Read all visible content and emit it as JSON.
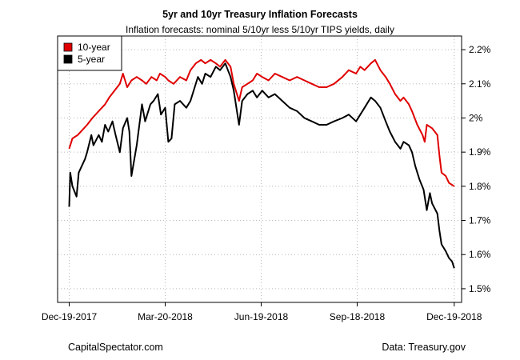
{
  "chart_data": {
    "type": "line",
    "title": "5yr and 10yr Treasury Inflation Forecasts",
    "subtitle": "Inflation forecasts: nominal 5/10yr less 5/10yr TIPS yields, daily",
    "y_axis_position": "right",
    "ylim": [
      1.46,
      2.24
    ],
    "y_ticks": [
      1.5,
      1.6,
      1.7,
      1.8,
      1.9,
      2.0,
      2.1,
      2.2
    ],
    "y_tick_labels": [
      "1.5%",
      "1.6%",
      "1.7%",
      "1.8%",
      "1.9%",
      "2%",
      "2.1%",
      "2.2%"
    ],
    "xlim": [
      "2017-12-08",
      "2018-12-26"
    ],
    "x_ticks": [
      "2017-12-19",
      "2018-03-20",
      "2018-06-19",
      "2018-09-18",
      "2018-12-19"
    ],
    "x_tick_labels": [
      "Dec-19-2017",
      "Mar-20-2018",
      "Jun-19-2018",
      "Sep-18-2018",
      "Dec-19-2018"
    ],
    "grid": true,
    "legend": "top-left",
    "series": [
      {
        "name": "10-year",
        "color": "#e00000",
        "points": [
          [
            "2017-12-19",
            1.91
          ],
          [
            "2017-12-22",
            1.94
          ],
          [
            "2017-12-27",
            1.95
          ],
          [
            "2018-01-02",
            1.97
          ],
          [
            "2018-01-05",
            1.98
          ],
          [
            "2018-01-10",
            2.0
          ],
          [
            "2018-01-16",
            2.02
          ],
          [
            "2018-01-22",
            2.04
          ],
          [
            "2018-01-26",
            2.06
          ],
          [
            "2018-01-31",
            2.08
          ],
          [
            "2018-02-05",
            2.1
          ],
          [
            "2018-02-08",
            2.13
          ],
          [
            "2018-02-12",
            2.09
          ],
          [
            "2018-02-16",
            2.11
          ],
          [
            "2018-02-21",
            2.12
          ],
          [
            "2018-02-26",
            2.11
          ],
          [
            "2018-03-02",
            2.1
          ],
          [
            "2018-03-07",
            2.12
          ],
          [
            "2018-03-12",
            2.11
          ],
          [
            "2018-03-15",
            2.13
          ],
          [
            "2018-03-20",
            2.12
          ],
          [
            "2018-03-23",
            2.11
          ],
          [
            "2018-03-28",
            2.1
          ],
          [
            "2018-04-03",
            2.12
          ],
          [
            "2018-04-09",
            2.11
          ],
          [
            "2018-04-13",
            2.14
          ],
          [
            "2018-04-18",
            2.16
          ],
          [
            "2018-04-23",
            2.17
          ],
          [
            "2018-04-27",
            2.16
          ],
          [
            "2018-05-02",
            2.17
          ],
          [
            "2018-05-07",
            2.16
          ],
          [
            "2018-05-11",
            2.15
          ],
          [
            "2018-05-16",
            2.17
          ],
          [
            "2018-05-21",
            2.15
          ],
          [
            "2018-05-24",
            2.1
          ],
          [
            "2018-05-29",
            2.05
          ],
          [
            "2018-06-01",
            2.09
          ],
          [
            "2018-06-06",
            2.1
          ],
          [
            "2018-06-11",
            2.11
          ],
          [
            "2018-06-15",
            2.13
          ],
          [
            "2018-06-20",
            2.12
          ],
          [
            "2018-06-26",
            2.11
          ],
          [
            "2018-07-02",
            2.13
          ],
          [
            "2018-07-09",
            2.12
          ],
          [
            "2018-07-16",
            2.11
          ],
          [
            "2018-07-23",
            2.12
          ],
          [
            "2018-07-30",
            2.11
          ],
          [
            "2018-08-06",
            2.1
          ],
          [
            "2018-08-13",
            2.09
          ],
          [
            "2018-08-20",
            2.09
          ],
          [
            "2018-08-27",
            2.1
          ],
          [
            "2018-09-04",
            2.12
          ],
          [
            "2018-09-10",
            2.14
          ],
          [
            "2018-09-17",
            2.13
          ],
          [
            "2018-09-21",
            2.15
          ],
          [
            "2018-09-25",
            2.14
          ],
          [
            "2018-10-01",
            2.16
          ],
          [
            "2018-10-05",
            2.17
          ],
          [
            "2018-10-10",
            2.14
          ],
          [
            "2018-10-15",
            2.12
          ],
          [
            "2018-10-19",
            2.1
          ],
          [
            "2018-10-24",
            2.07
          ],
          [
            "2018-10-29",
            2.05
          ],
          [
            "2018-11-01",
            2.06
          ],
          [
            "2018-11-06",
            2.04
          ],
          [
            "2018-11-09",
            2.02
          ],
          [
            "2018-11-14",
            1.98
          ],
          [
            "2018-11-19",
            1.95
          ],
          [
            "2018-11-21",
            1.93
          ],
          [
            "2018-11-23",
            1.98
          ],
          [
            "2018-11-28",
            1.97
          ],
          [
            "2018-12-03",
            1.95
          ],
          [
            "2018-12-05",
            1.89
          ],
          [
            "2018-12-07",
            1.84
          ],
          [
            "2018-12-11",
            1.83
          ],
          [
            "2018-12-14",
            1.81
          ],
          [
            "2018-12-19",
            1.8
          ]
        ]
      },
      {
        "name": "5-year",
        "color": "#000000",
        "points": [
          [
            "2017-12-19",
            1.74
          ],
          [
            "2017-12-20",
            1.84
          ],
          [
            "2017-12-22",
            1.8
          ],
          [
            "2017-12-26",
            1.77
          ],
          [
            "2017-12-28",
            1.84
          ],
          [
            "2018-01-03",
            1.88
          ],
          [
            "2018-01-05",
            1.9
          ],
          [
            "2018-01-09",
            1.95
          ],
          [
            "2018-01-11",
            1.92
          ],
          [
            "2018-01-16",
            1.95
          ],
          [
            "2018-01-19",
            1.93
          ],
          [
            "2018-01-22",
            1.98
          ],
          [
            "2018-01-25",
            1.96
          ],
          [
            "2018-01-29",
            1.99
          ],
          [
            "2018-02-01",
            1.95
          ],
          [
            "2018-02-05",
            1.9
          ],
          [
            "2018-02-08",
            1.97
          ],
          [
            "2018-02-12",
            2.0
          ],
          [
            "2018-02-14",
            1.96
          ],
          [
            "2018-02-16",
            1.83
          ],
          [
            "2018-02-21",
            1.92
          ],
          [
            "2018-02-26",
            2.04
          ],
          [
            "2018-03-01",
            1.99
          ],
          [
            "2018-03-06",
            2.04
          ],
          [
            "2018-03-09",
            2.05
          ],
          [
            "2018-03-13",
            2.07
          ],
          [
            "2018-03-16",
            2.01
          ],
          [
            "2018-03-20",
            2.03
          ],
          [
            "2018-03-23",
            1.93
          ],
          [
            "2018-03-26",
            1.94
          ],
          [
            "2018-03-29",
            2.04
          ],
          [
            "2018-04-03",
            2.05
          ],
          [
            "2018-04-09",
            2.03
          ],
          [
            "2018-04-13",
            2.05
          ],
          [
            "2018-04-17",
            2.09
          ],
          [
            "2018-04-20",
            2.12
          ],
          [
            "2018-04-24",
            2.1
          ],
          [
            "2018-04-27",
            2.13
          ],
          [
            "2018-05-02",
            2.12
          ],
          [
            "2018-05-07",
            2.15
          ],
          [
            "2018-05-11",
            2.14
          ],
          [
            "2018-05-16",
            2.16
          ],
          [
            "2018-05-21",
            2.12
          ],
          [
            "2018-05-24",
            2.08
          ],
          [
            "2018-05-29",
            1.98
          ],
          [
            "2018-06-01",
            2.05
          ],
          [
            "2018-06-06",
            2.07
          ],
          [
            "2018-06-11",
            2.08
          ],
          [
            "2018-06-15",
            2.06
          ],
          [
            "2018-06-20",
            2.08
          ],
          [
            "2018-06-26",
            2.06
          ],
          [
            "2018-07-02",
            2.07
          ],
          [
            "2018-07-09",
            2.05
          ],
          [
            "2018-07-16",
            2.03
          ],
          [
            "2018-07-23",
            2.02
          ],
          [
            "2018-07-30",
            2.0
          ],
          [
            "2018-08-06",
            1.99
          ],
          [
            "2018-08-13",
            1.98
          ],
          [
            "2018-08-20",
            1.98
          ],
          [
            "2018-08-27",
            1.99
          ],
          [
            "2018-09-04",
            2.0
          ],
          [
            "2018-09-10",
            2.01
          ],
          [
            "2018-09-17",
            1.99
          ],
          [
            "2018-09-21",
            2.01
          ],
          [
            "2018-09-25",
            2.03
          ],
          [
            "2018-10-01",
            2.06
          ],
          [
            "2018-10-05",
            2.05
          ],
          [
            "2018-10-10",
            2.03
          ],
          [
            "2018-10-15",
            1.99
          ],
          [
            "2018-10-19",
            1.96
          ],
          [
            "2018-10-24",
            1.93
          ],
          [
            "2018-10-29",
            1.91
          ],
          [
            "2018-11-01",
            1.93
          ],
          [
            "2018-11-06",
            1.92
          ],
          [
            "2018-11-09",
            1.9
          ],
          [
            "2018-11-12",
            1.86
          ],
          [
            "2018-11-16",
            1.82
          ],
          [
            "2018-11-20",
            1.79
          ],
          [
            "2018-11-23",
            1.73
          ],
          [
            "2018-11-26",
            1.78
          ],
          [
            "2018-11-28",
            1.75
          ],
          [
            "2018-12-03",
            1.72
          ],
          [
            "2018-12-05",
            1.67
          ],
          [
            "2018-12-07",
            1.63
          ],
          [
            "2018-12-11",
            1.61
          ],
          [
            "2018-12-14",
            1.59
          ],
          [
            "2018-12-17",
            1.58
          ],
          [
            "2018-12-19",
            1.56
          ]
        ]
      }
    ]
  },
  "footer": {
    "left": "CapitalSpectator.com",
    "right": "Data: Treasury.gov"
  }
}
